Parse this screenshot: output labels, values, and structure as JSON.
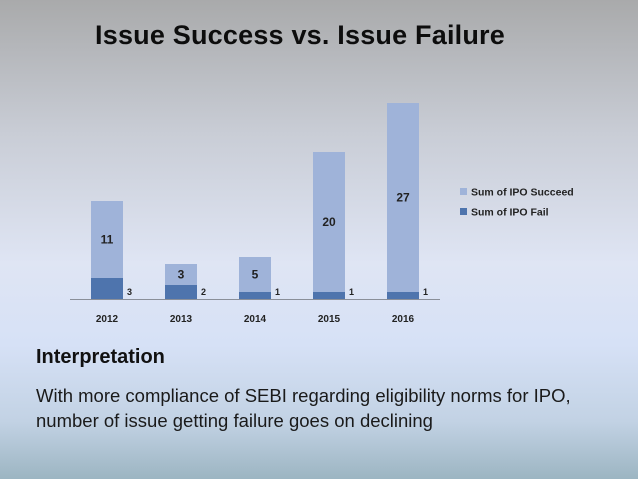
{
  "slide": {
    "title": "Issue Success vs. Issue Failure",
    "heading": "Interpretation",
    "body": "With more compliance of SEBI regarding eligibility norms for IPO, number of issue getting failure goes on declining"
  },
  "colors": {
    "succeed": "#9fb3d9",
    "fail": "#4e74ad",
    "axis": "#8a8f99"
  },
  "chart_data": {
    "type": "bar",
    "stacked": true,
    "title": "",
    "xlabel": "",
    "ylabel": "",
    "categories": [
      "2012",
      "2013",
      "2014",
      "2015",
      "2016"
    ],
    "series": [
      {
        "name": "Sum of IPO Fail",
        "values": [
          3,
          2,
          1,
          1,
          1
        ]
      },
      {
        "name": "Sum of IPO Succeed",
        "values": [
          11,
          3,
          5,
          20,
          27
        ]
      }
    ],
    "ylim": [
      0,
      28
    ],
    "grid": false,
    "legend": "right"
  }
}
